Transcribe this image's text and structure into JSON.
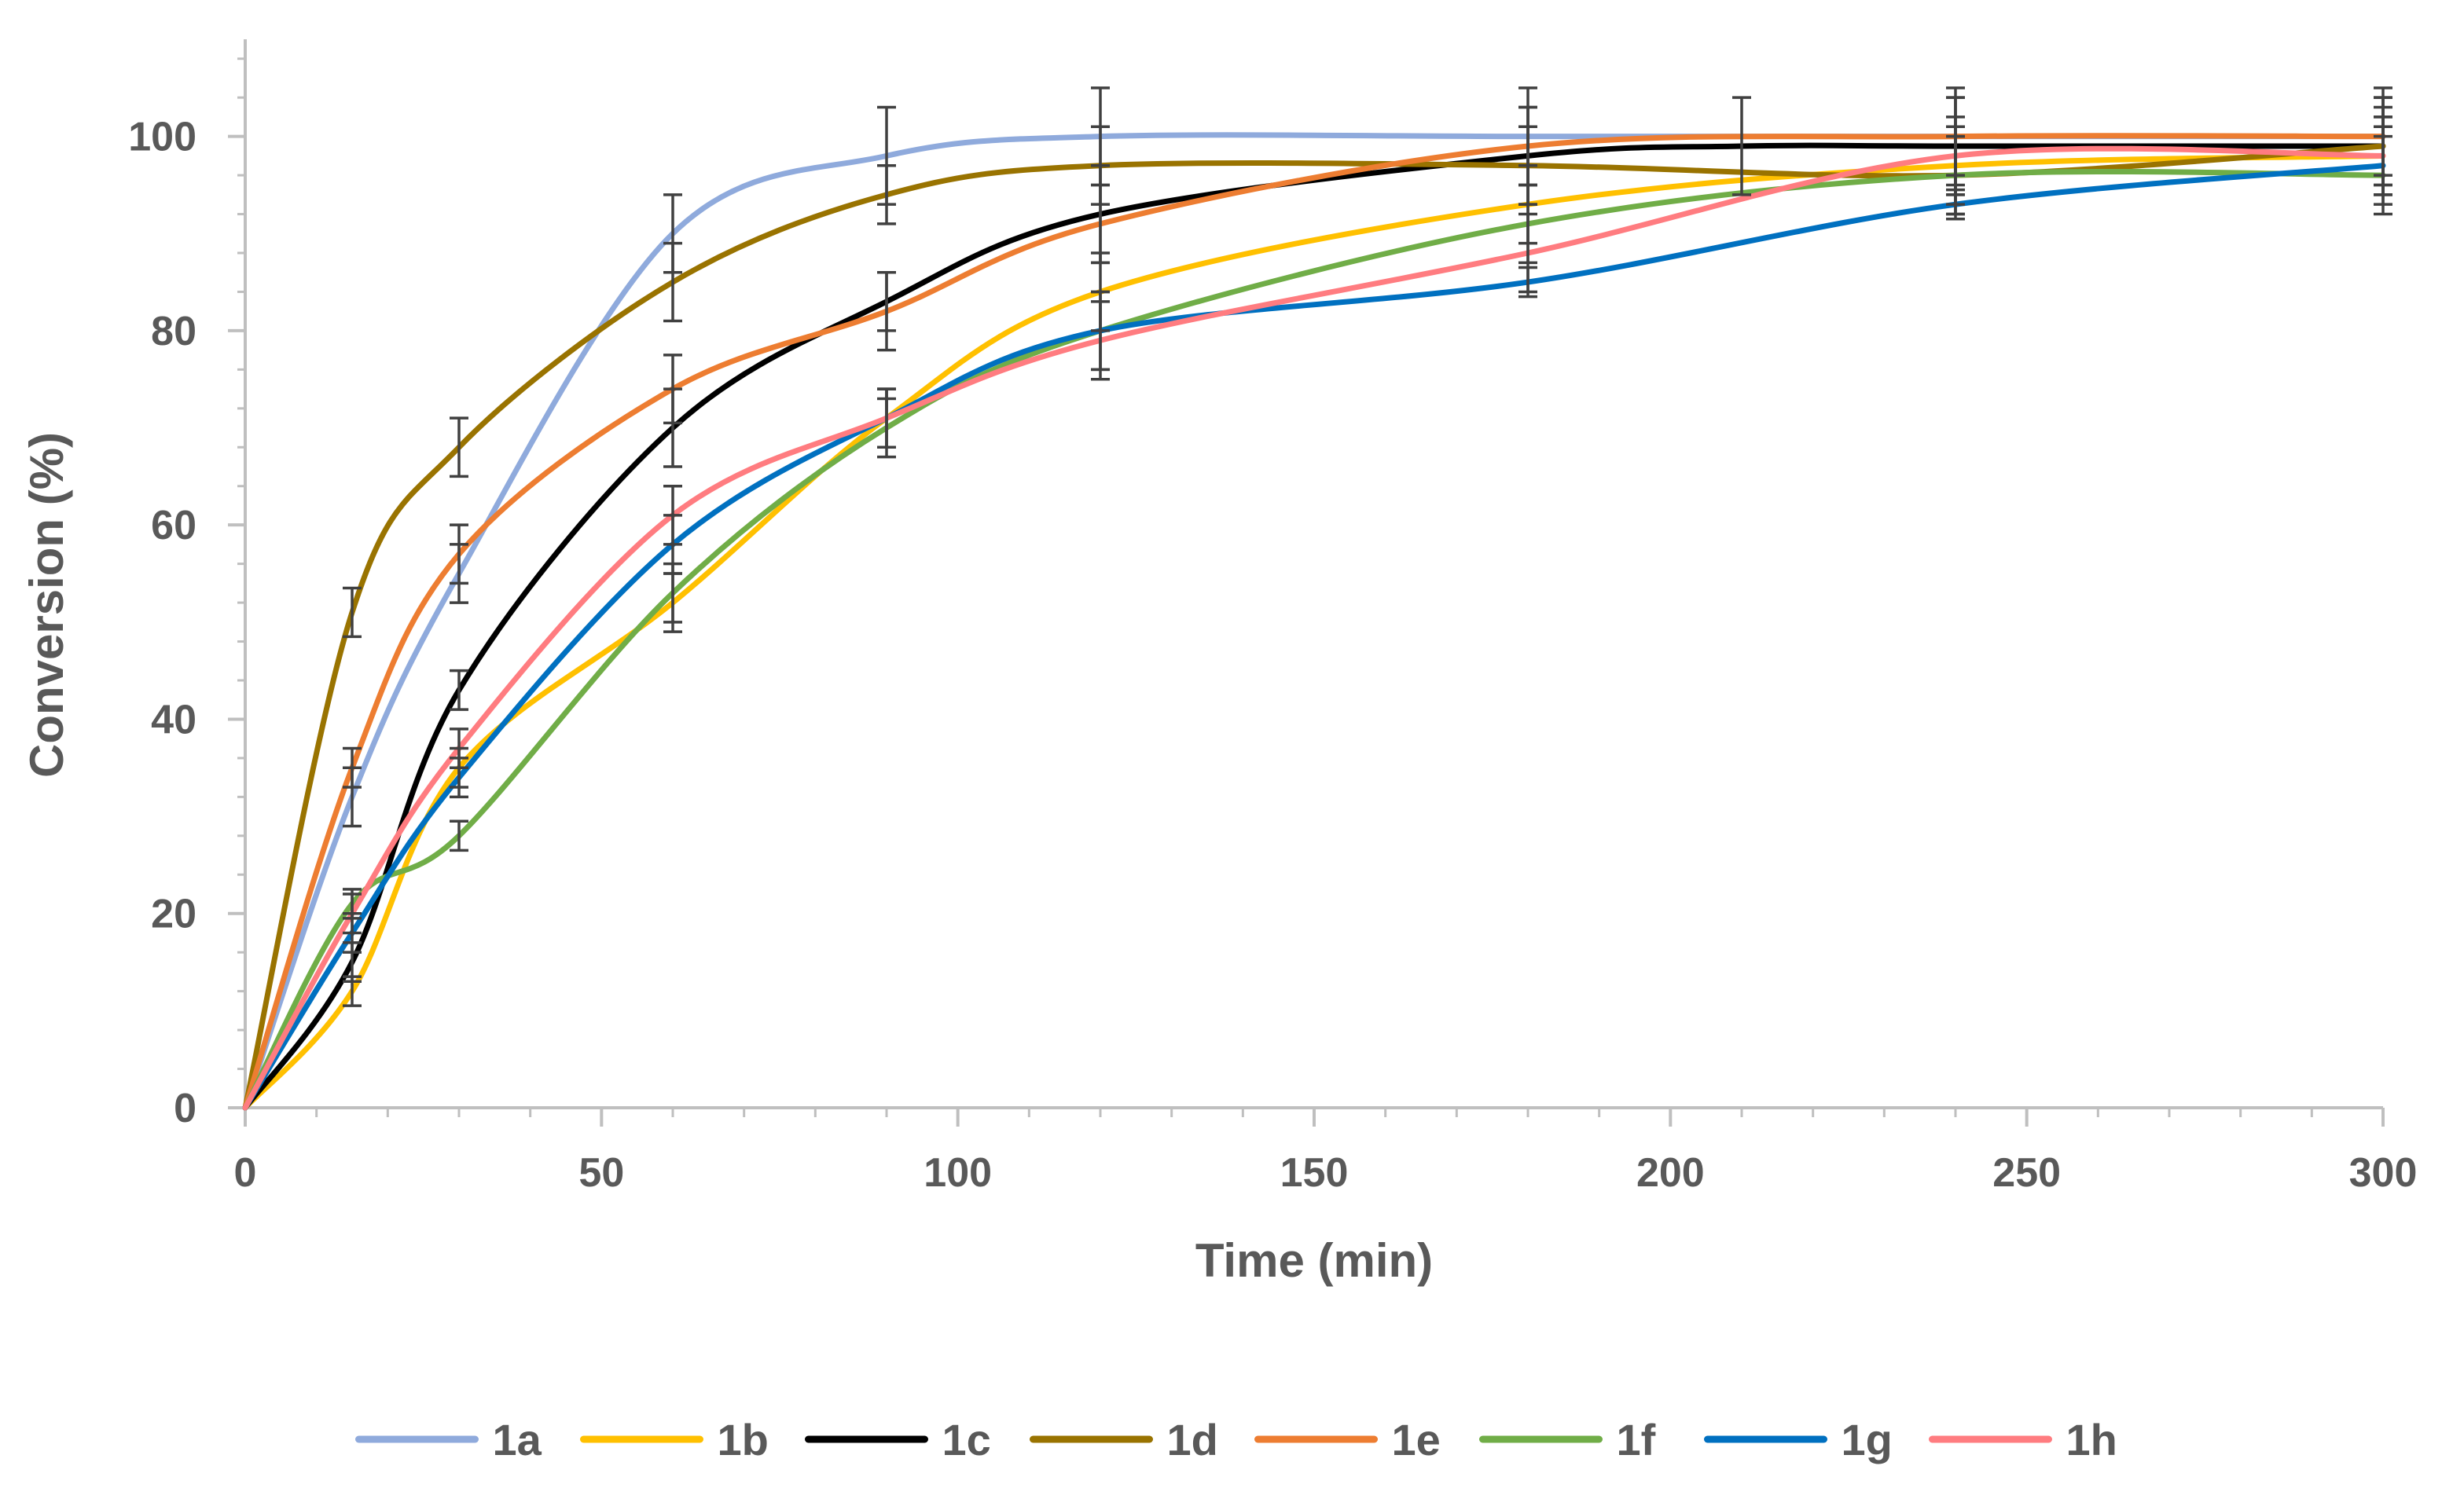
{
  "chart_data": {
    "type": "line",
    "title": "",
    "xlabel": "Time (min)",
    "ylabel": "Conversion (%)",
    "xlim": [
      0,
      300
    ],
    "ylim": [
      0,
      110
    ],
    "x_ticks": [
      0,
      50,
      100,
      150,
      200,
      250,
      300
    ],
    "y_ticks": [
      0,
      20,
      40,
      60,
      80,
      100
    ],
    "x_tick_labels": [
      "0",
      "50",
      "100",
      "150",
      "200",
      "250",
      "300"
    ],
    "y_tick_labels": [
      "0",
      "20",
      "40",
      "60",
      "80",
      "100"
    ],
    "x_minor_step": 10,
    "y_minor_step": 4,
    "grid": false,
    "legend_position": "bottom",
    "colors": {
      "axis": "#bfbfbf",
      "text": "#595959",
      "error_bar": "#404040"
    },
    "series": [
      {
        "name": "1a",
        "color": "#8faadc",
        "x": [
          0,
          15,
          30,
          60,
          90,
          120,
          180,
          240,
          300
        ],
        "y": [
          0,
          32,
          55,
          90,
          98,
          100,
          100,
          100,
          100
        ],
        "err": [
          0,
          3,
          3,
          4,
          5,
          5,
          5,
          5,
          5
        ]
      },
      {
        "name": "1b",
        "color": "#ffc000",
        "x": [
          0,
          15,
          30,
          60,
          90,
          120,
          180,
          240,
          300
        ],
        "y": [
          0,
          12,
          35,
          52,
          71,
          84,
          93,
          97,
          98
        ],
        "err": [
          0,
          1.5,
          2,
          3,
          3,
          4,
          4,
          4,
          4
        ]
      },
      {
        "name": "1c",
        "color": "#000000",
        "x": [
          0,
          15,
          30,
          60,
          90,
          120,
          180,
          210,
          240,
          300
        ],
        "y": [
          0,
          15,
          43,
          70,
          83,
          92,
          98,
          99,
          99,
          99
        ],
        "err": [
          0,
          2,
          2,
          4,
          3,
          5,
          5,
          5,
          5,
          5
        ]
      },
      {
        "name": "1d",
        "color": "#997300",
        "x": [
          0,
          15,
          30,
          60,
          90,
          120,
          180,
          240,
          300
        ],
        "y": [
          0,
          51,
          68,
          85,
          94,
          97,
          97,
          96,
          99
        ],
        "err": [
          0,
          2.5,
          3,
          4,
          3,
          4,
          4,
          4,
          4
        ]
      },
      {
        "name": "1e",
        "color": "#ed7d31",
        "x": [
          0,
          15,
          30,
          60,
          90,
          120,
          180,
          240,
          300
        ],
        "y": [
          0,
          35,
          57,
          74,
          82,
          91,
          99,
          100,
          100
        ],
        "err": [
          0,
          2,
          3,
          3.5,
          4,
          4,
          4,
          4,
          4
        ]
      },
      {
        "name": "1f",
        "color": "#70ad47",
        "x": [
          0,
          15,
          30,
          60,
          90,
          120,
          180,
          240,
          300
        ],
        "y": [
          0,
          21,
          28,
          53,
          70,
          80,
          91,
          96,
          96
        ],
        "err": [
          0,
          1.5,
          1.5,
          3,
          3,
          4,
          4,
          4,
          4
        ]
      },
      {
        "name": "1g",
        "color": "#0070c0",
        "x": [
          0,
          15,
          30,
          60,
          90,
          120,
          180,
          240,
          300
        ],
        "y": [
          0,
          18,
          34,
          58,
          71,
          80,
          85,
          93,
          97
        ],
        "err": [
          0,
          2,
          2,
          3,
          3,
          4,
          1.5,
          1.5,
          4
        ]
      },
      {
        "name": "1h",
        "color": "#ff7c80",
        "x": [
          0,
          15,
          30,
          60,
          90,
          120,
          180,
          240,
          300
        ],
        "y": [
          0,
          20,
          37,
          61,
          71,
          79,
          88,
          98,
          98
        ],
        "err": [
          0,
          2,
          2,
          3,
          3,
          4,
          4,
          4,
          4
        ]
      }
    ]
  }
}
